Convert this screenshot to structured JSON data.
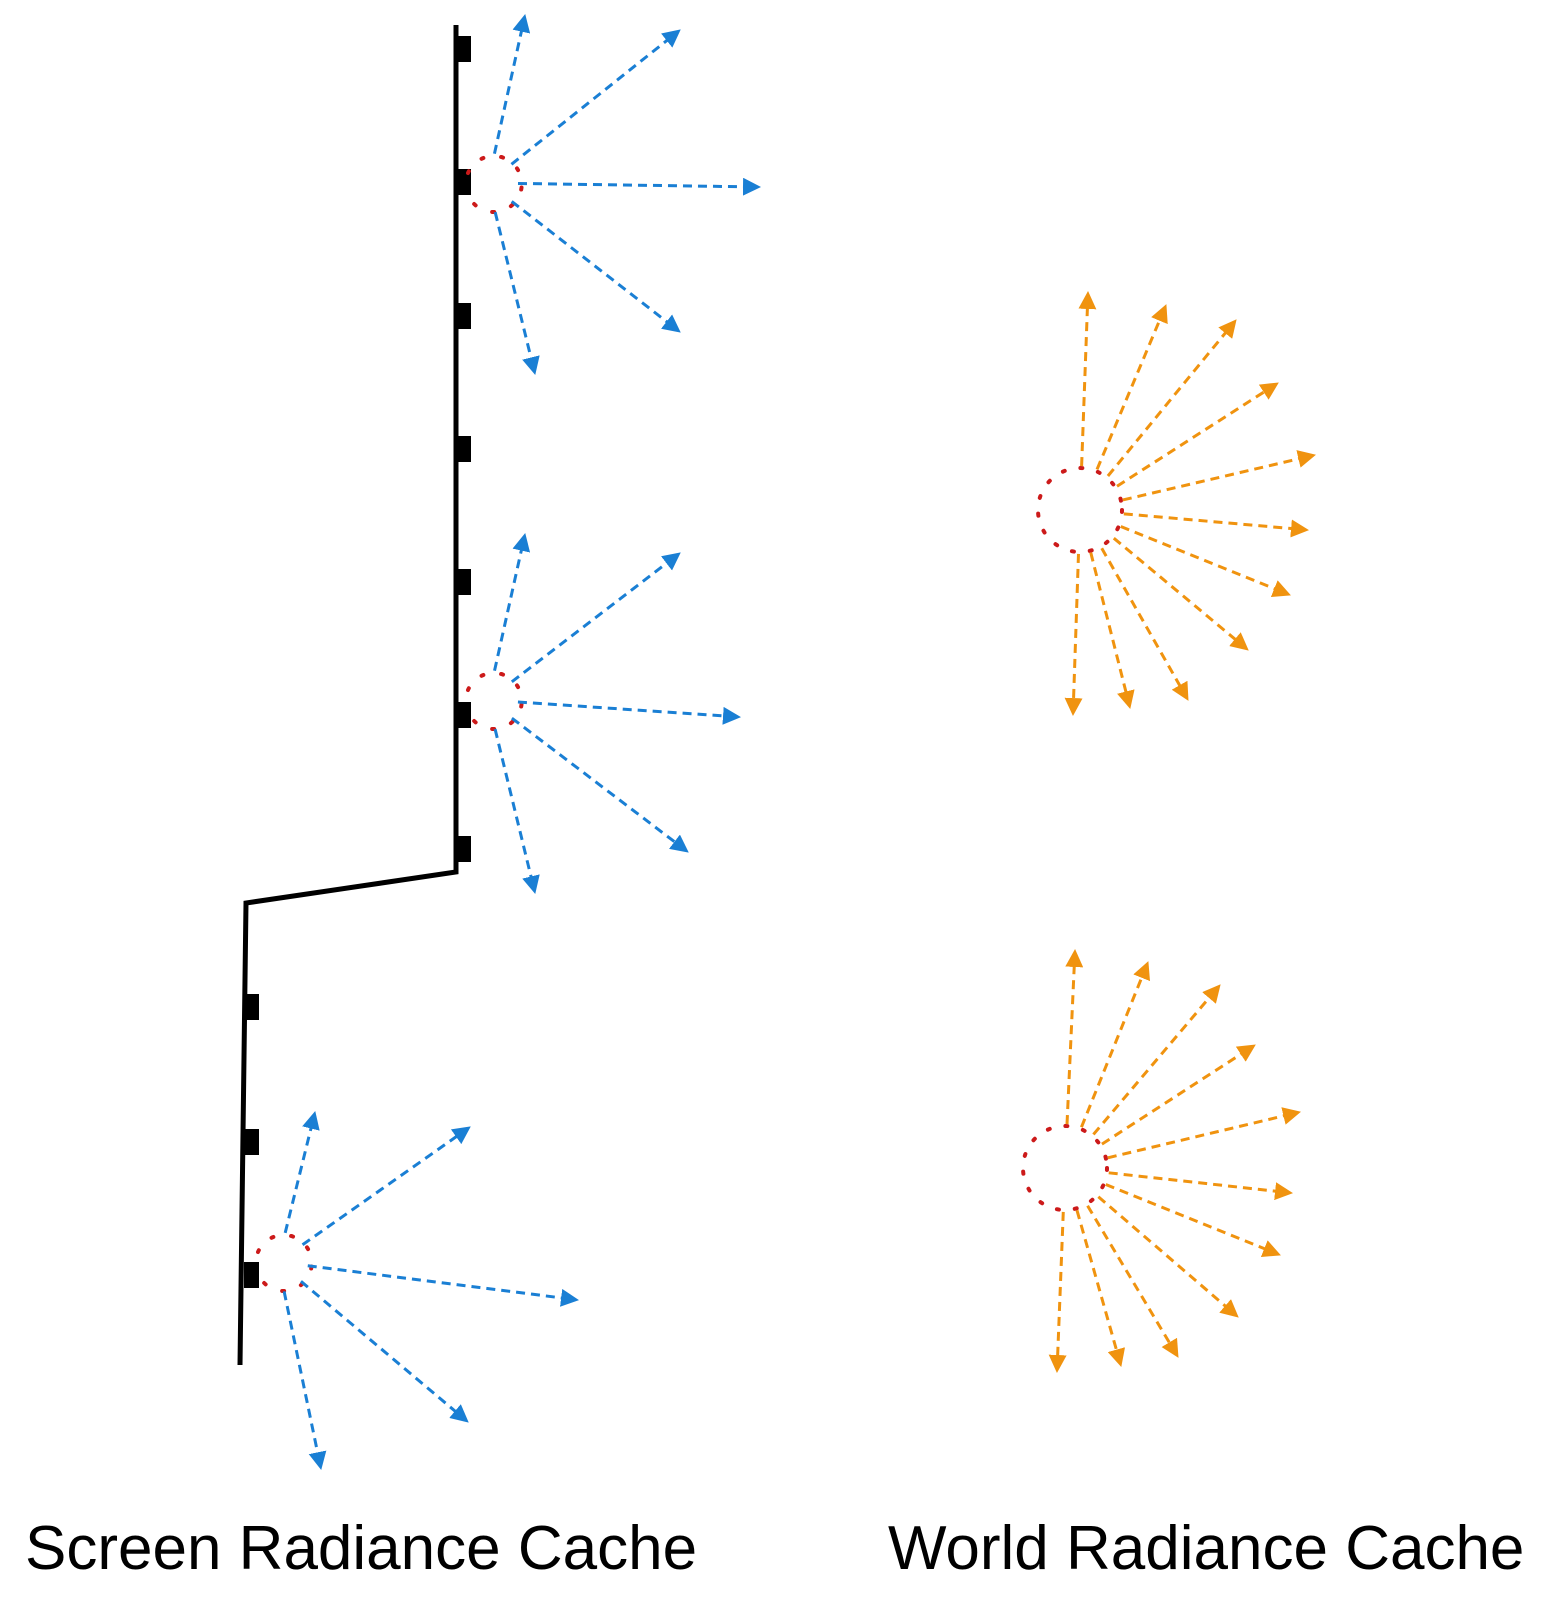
{
  "captions": {
    "screen": "Screen Radiance Cache",
    "world": "World Radiance Cache"
  },
  "colors": {
    "surface": "#000000",
    "screen_rays": "#1a7fd4",
    "world_rays": "#f0930f",
    "probe_outline": "#cc1a1a"
  },
  "icons": {
    "surface": "surface-polyline",
    "screen_probe": "hemisphere-probe",
    "world_probe": "sphere-probe"
  }
}
